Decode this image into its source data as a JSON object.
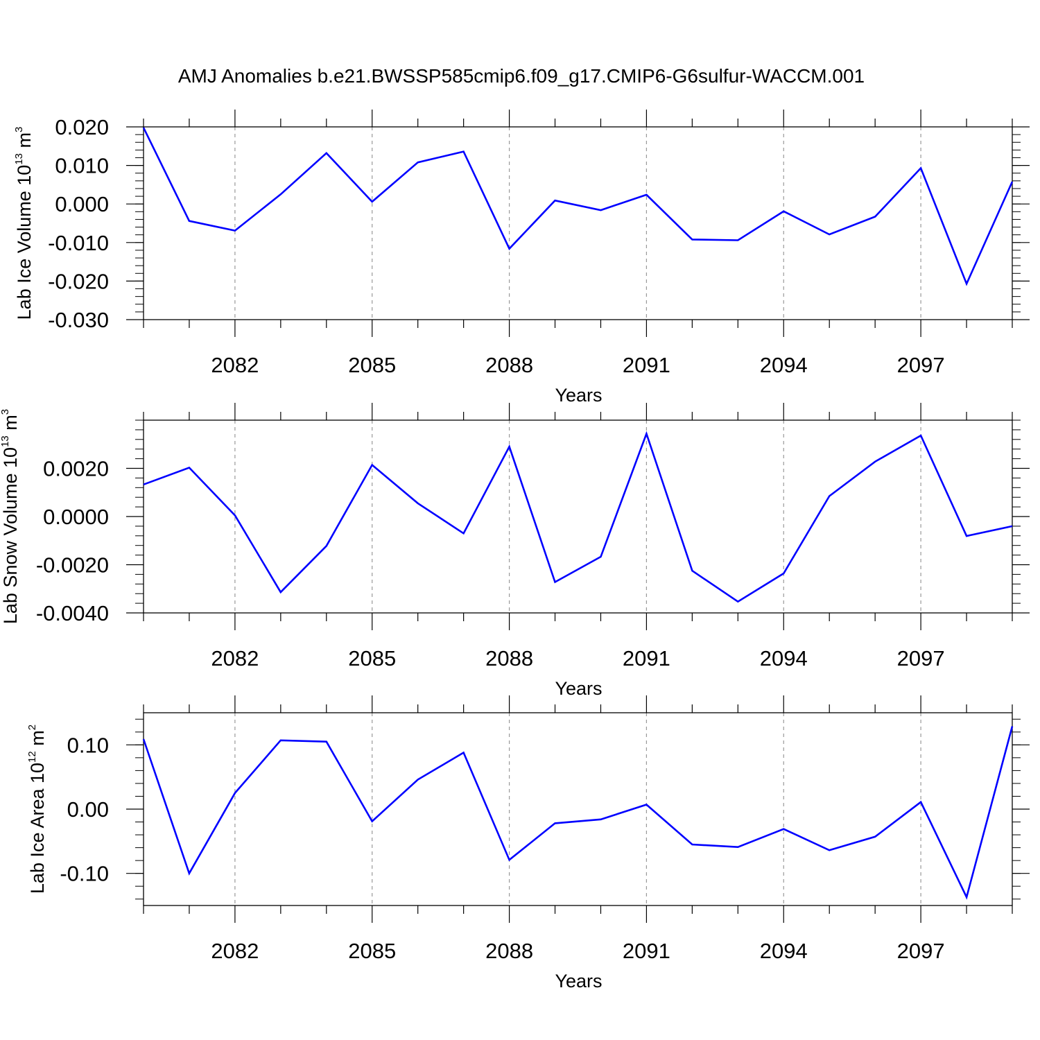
{
  "title": "AMJ Anomalies b.e21.BWSSP585cmip6.f09_g17.CMIP6-G6sulfur-WACCM.001",
  "colors": {
    "series": "#0000ff",
    "axis": "#000000",
    "grid": "#999999"
  },
  "chart_data": [
    {
      "type": "line",
      "title": "AMJ Anomalies b.e21.BWSSP585cmip6.f09_g17.CMIP6-G6sulfur-WACCM.001",
      "xlabel": "Years",
      "ylabel": {
        "text": "Lab Ice Volume 10",
        "exp": "13",
        "unit": " m",
        "unit_exp": "3"
      },
      "xlim": [
        2080,
        2099
      ],
      "ylim": [
        -0.03,
        0.02
      ],
      "xticks": [
        2082,
        2085,
        2088,
        2091,
        2094,
        2097
      ],
      "xtick_labels": [
        "2082",
        "2085",
        "2088",
        "2091",
        "2094",
        "2097"
      ],
      "yticks": [
        0.02,
        0.01,
        0.0,
        -0.01,
        -0.02,
        -0.03
      ],
      "ytick_labels": [
        "0.020",
        "0.010",
        "0.000",
        "-0.010",
        "-0.020",
        "-0.030"
      ],
      "grid": "vertical dashed at major x ticks",
      "x": [
        2080,
        2081,
        2082,
        2083,
        2084,
        2085,
        2086,
        2087,
        2088,
        2089,
        2090,
        2091,
        2092,
        2093,
        2094,
        2095,
        2096,
        2097,
        2098,
        2099
      ],
      "values": [
        0.0198,
        -0.0044,
        -0.0069,
        0.0025,
        0.0132,
        0.0006,
        0.0108,
        0.0136,
        -0.0116,
        0.0009,
        -0.0016,
        0.0024,
        -0.0092,
        -0.0094,
        -0.0019,
        -0.0079,
        -0.0033,
        0.0093,
        -0.0207,
        0.0058
      ]
    },
    {
      "type": "line",
      "xlabel": "Years",
      "ylabel": {
        "text": "Lab Snow Volume 10",
        "exp": "13",
        "unit": " m",
        "unit_exp": "3"
      },
      "xlim": [
        2080,
        2099
      ],
      "ylim": [
        -0.004,
        0.004
      ],
      "xticks": [
        2082,
        2085,
        2088,
        2091,
        2094,
        2097
      ],
      "xtick_labels": [
        "2082",
        "2085",
        "2088",
        "2091",
        "2094",
        "2097"
      ],
      "yticks": [
        0.002,
        0.0,
        -0.002,
        -0.004
      ],
      "ytick_labels": [
        "0.0020",
        "0.0000",
        "-0.0020",
        "-0.0040"
      ],
      "grid": "vertical dashed at major x ticks",
      "x": [
        2080,
        2081,
        2082,
        2083,
        2084,
        2085,
        2086,
        2087,
        2088,
        2089,
        2090,
        2091,
        2092,
        2093,
        2094,
        2095,
        2096,
        2097,
        2098,
        2099
      ],
      "values": [
        0.00133,
        0.00203,
        5e-05,
        -0.00314,
        -0.00122,
        0.00214,
        0.00055,
        -0.0007,
        0.0029,
        -0.00272,
        -0.00167,
        0.00344,
        -0.00225,
        -0.00353,
        -0.00236,
        0.00085,
        0.00228,
        0.00336,
        -0.00081,
        -0.0004
      ]
    },
    {
      "type": "line",
      "xlabel": "Years",
      "ylabel": {
        "text": "Lab Ice Area 10",
        "exp": "12",
        "unit": " m",
        "unit_exp": "2"
      },
      "xlim": [
        2080,
        2099
      ],
      "ylim": [
        -0.15,
        0.15
      ],
      "xticks": [
        2082,
        2085,
        2088,
        2091,
        2094,
        2097
      ],
      "xtick_labels": [
        "2082",
        "2085",
        "2088",
        "2091",
        "2094",
        "2097"
      ],
      "yticks": [
        0.1,
        0.0,
        -0.1
      ],
      "ytick_labels": [
        "0.10",
        "0.00",
        "-0.10"
      ],
      "grid": "vertical dashed at major x ticks",
      "x": [
        2080,
        2081,
        2082,
        2083,
        2084,
        2085,
        2086,
        2087,
        2088,
        2089,
        2090,
        2091,
        2092,
        2093,
        2094,
        2095,
        2096,
        2097,
        2098,
        2099
      ],
      "values": [
        0.109,
        -0.1,
        0.025,
        0.107,
        0.105,
        -0.019,
        0.046,
        0.088,
        -0.079,
        -0.022,
        -0.016,
        0.007,
        -0.055,
        -0.059,
        -0.031,
        -0.064,
        -0.043,
        0.011,
        -0.137,
        0.129
      ]
    }
  ]
}
